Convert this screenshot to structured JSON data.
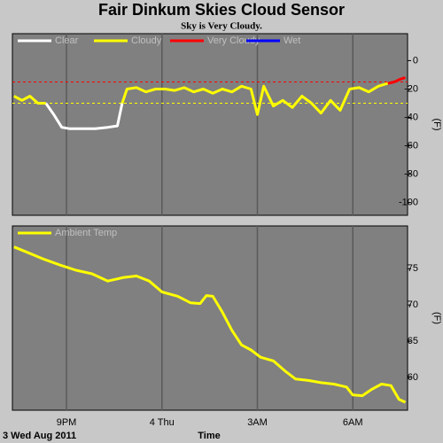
{
  "chart_data": [
    {
      "type": "line",
      "title": "Fair Dinkum Skies Cloud Sensor",
      "subtitle": "Sky is Very Cloudy.",
      "ylabel": "(F)",
      "ylim": [
        -109,
        19
      ],
      "yticks": [
        0,
        -20,
        -40,
        -60,
        -80,
        -100
      ],
      "reference_lines": [
        {
          "value": -15,
          "color": "#ff0000"
        },
        {
          "value": -30,
          "color": "#ffff00"
        }
      ],
      "x": [
        19.35,
        19.6,
        19.85,
        20.1,
        20.35,
        20.6,
        20.85,
        21.1,
        21.5,
        21.9,
        22.3,
        22.6,
        22.75,
        22.9,
        23.2,
        23.5,
        23.8,
        24.1,
        24.4,
        24.7,
        25.0,
        25.3,
        25.6,
        25.9,
        26.2,
        26.5,
        26.8,
        27.0,
        27.2,
        27.5,
        27.8,
        28.1,
        28.4,
        28.7,
        29.0,
        29.3,
        29.6,
        29.9,
        30.2,
        30.5,
        30.8,
        31.1,
        31.3,
        31.5,
        31.65
      ],
      "series": [
        {
          "name": "Clear",
          "color": "#ffffff",
          "values": [
            null,
            null,
            null,
            null,
            -30,
            -38,
            -47,
            -48,
            -48,
            -48,
            -47,
            -46,
            -30,
            null,
            null,
            null,
            null,
            null,
            null,
            null,
            null,
            null,
            null,
            null,
            null,
            null,
            null,
            null,
            null,
            null,
            null,
            null,
            null,
            null,
            null,
            null,
            null,
            null,
            null,
            null,
            null,
            null,
            null,
            null,
            null
          ]
        },
        {
          "name": "Cloudy",
          "color": "#ffff00",
          "values": [
            -25,
            -28,
            -25,
            -30,
            -30,
            null,
            null,
            null,
            null,
            null,
            null,
            null,
            -30,
            -20,
            -19,
            -22,
            -20,
            -20,
            -21,
            -19,
            -22,
            -20,
            -23,
            -20,
            -22,
            -18,
            -20,
            -38,
            -18,
            -32,
            -28,
            -33,
            -25,
            -30,
            -37,
            -28,
            -35,
            -20,
            -19,
            -22,
            -18,
            -16,
            null,
            null,
            null
          ]
        },
        {
          "name": "Very Cloudy",
          "color": "#ff0000",
          "values": [
            null,
            null,
            null,
            null,
            null,
            null,
            null,
            null,
            null,
            null,
            null,
            null,
            null,
            null,
            null,
            null,
            null,
            null,
            null,
            null,
            null,
            null,
            null,
            null,
            null,
            null,
            null,
            null,
            null,
            null,
            null,
            null,
            null,
            null,
            null,
            null,
            null,
            null,
            null,
            null,
            null,
            -16,
            -15,
            -13,
            -12
          ]
        },
        {
          "name": "Wet",
          "color": "#0000ff",
          "values": [
            null,
            null,
            null,
            null,
            null,
            null,
            null,
            null,
            null,
            null,
            null,
            null,
            null,
            null,
            null,
            null,
            null,
            null,
            null,
            null,
            null,
            null,
            null,
            null,
            null,
            null,
            null,
            null,
            null,
            null,
            null,
            null,
            null,
            null,
            null,
            null,
            null,
            null,
            null,
            null,
            null,
            null,
            null,
            null,
            null
          ]
        }
      ]
    },
    {
      "type": "line",
      "ylabel": "(F)",
      "xlabel": "Time",
      "date_label": "3 Wed Aug 2011",
      "xlim": [
        19.3,
        31.72
      ],
      "xticks": [
        {
          "value": 21,
          "label": "9PM"
        },
        {
          "value": 24,
          "label": "4 Thu"
        },
        {
          "value": 27,
          "label": "3AM"
        },
        {
          "value": 30,
          "label": "6AM"
        }
      ],
      "ylim": [
        55.5,
        80.9
      ],
      "yticks": [
        60,
        65,
        70,
        75
      ],
      "x": [
        19.35,
        19.8,
        20.3,
        20.8,
        21.3,
        21.8,
        22.3,
        22.8,
        23.2,
        23.6,
        24.0,
        24.5,
        24.9,
        25.2,
        25.4,
        25.6,
        25.9,
        26.2,
        26.5,
        26.8,
        27.1,
        27.5,
        27.9,
        28.2,
        28.6,
        29.0,
        29.4,
        29.8,
        30.0,
        30.3,
        30.6,
        30.9,
        31.2,
        31.45,
        31.65
      ],
      "series": [
        {
          "name": "Ambient Temp",
          "color": "#ffff00",
          "values": [
            78,
            77.2,
            76.3,
            75.5,
            74.8,
            74.3,
            73.3,
            73.8,
            74,
            73.3,
            71.8,
            71.2,
            70.3,
            70.2,
            71.3,
            71.2,
            69,
            66.5,
            64.5,
            63.8,
            62.8,
            62.3,
            60.8,
            59.8,
            59.6,
            59.3,
            59.1,
            58.7,
            57.6,
            57.5,
            58.4,
            59.1,
            58.9,
            57,
            56.6
          ]
        }
      ]
    }
  ]
}
